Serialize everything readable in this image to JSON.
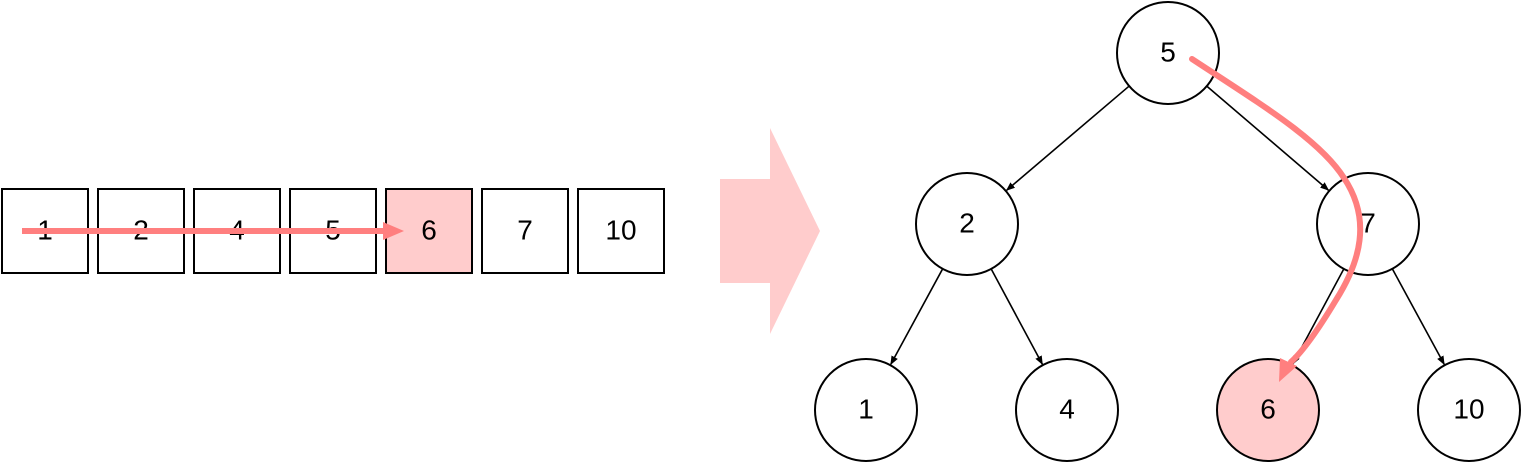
{
  "array": {
    "cells": [
      {
        "label": "1",
        "highlighted": false
      },
      {
        "label": "2",
        "highlighted": false
      },
      {
        "label": "4",
        "highlighted": false
      },
      {
        "label": "5",
        "highlighted": false
      },
      {
        "label": "6",
        "highlighted": true
      },
      {
        "label": "7",
        "highlighted": false
      },
      {
        "label": "10",
        "highlighted": false
      }
    ]
  },
  "tree": {
    "nodes": [
      {
        "id": "n5",
        "label": "5",
        "highlighted": false
      },
      {
        "id": "n2",
        "label": "2",
        "highlighted": false
      },
      {
        "id": "n7",
        "label": "7",
        "highlighted": false
      },
      {
        "id": "n1",
        "label": "1",
        "highlighted": false
      },
      {
        "id": "n4",
        "label": "4",
        "highlighted": false
      },
      {
        "id": "n6",
        "label": "6",
        "highlighted": true
      },
      {
        "id": "n10",
        "label": "10",
        "highlighted": false
      }
    ],
    "edges": [
      {
        "from": "n5",
        "to": "n2"
      },
      {
        "from": "n5",
        "to": "n7"
      },
      {
        "from": "n2",
        "to": "n1"
      },
      {
        "from": "n2",
        "to": "n4"
      },
      {
        "from": "n7",
        "to": "n6"
      },
      {
        "from": "n7",
        "to": "n10"
      }
    ]
  },
  "colors": {
    "highlight_fill": "#FFCCCC",
    "path_arrow": "#FF7F7F",
    "big_arrow": "#FFCCCC",
    "stroke": "#000000",
    "background": "#FFFFFF"
  }
}
